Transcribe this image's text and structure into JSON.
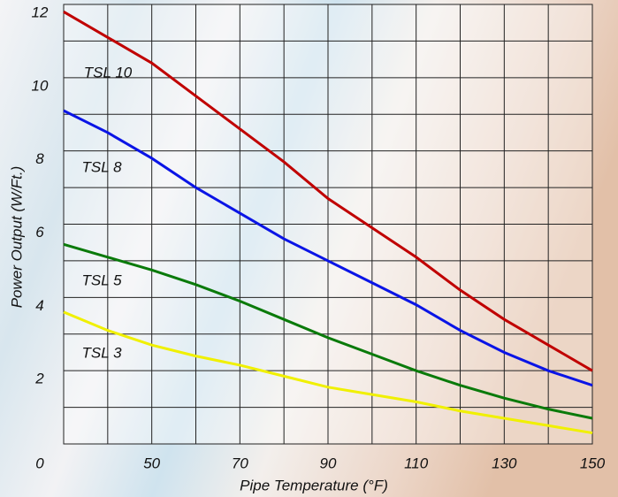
{
  "chart_data": {
    "type": "line",
    "x_label": "Pipe Temperature (°F)",
    "y_label": "Power Output (W/Ft.)",
    "x": [
      30,
      40,
      50,
      60,
      70,
      80,
      90,
      100,
      110,
      120,
      130,
      140,
      150
    ],
    "series": [
      {
        "name": "TSL 10",
        "color": "#c00000",
        "values": [
          11.8,
          11.1,
          10.4,
          9.5,
          8.6,
          7.7,
          6.7,
          5.9,
          5.1,
          4.2,
          3.4,
          2.7,
          2.0
        ]
      },
      {
        "name": "TSL 8",
        "color": "#0a14e6",
        "values": [
          9.1,
          8.5,
          7.8,
          7.0,
          6.3,
          5.6,
          5.0,
          4.4,
          3.8,
          3.1,
          2.5,
          2.0,
          1.6
        ]
      },
      {
        "name": "TSL 5",
        "color": "#0a7a0a",
        "values": [
          5.45,
          5.1,
          4.75,
          4.35,
          3.9,
          3.4,
          2.9,
          2.45,
          2.0,
          1.6,
          1.25,
          0.95,
          0.7
        ]
      },
      {
        "name": "TSL 3",
        "color": "#f0f000",
        "values": [
          3.6,
          3.1,
          2.7,
          2.4,
          2.15,
          1.85,
          1.55,
          1.35,
          1.15,
          0.9,
          0.7,
          0.5,
          0.3
        ]
      }
    ],
    "xlim": [
      30,
      150
    ],
    "ylim": [
      0,
      12
    ],
    "xticks": [
      50,
      70,
      90,
      110,
      130,
      150
    ],
    "yticks": [
      0,
      2,
      4,
      6,
      8,
      10,
      12
    ],
    "xgrid": [
      30,
      40,
      50,
      60,
      70,
      80,
      90,
      100,
      110,
      120,
      130,
      140,
      150
    ],
    "ygrid": [
      0,
      1,
      2,
      3,
      4,
      5,
      6,
      7,
      8,
      9,
      10,
      11,
      12
    ]
  }
}
